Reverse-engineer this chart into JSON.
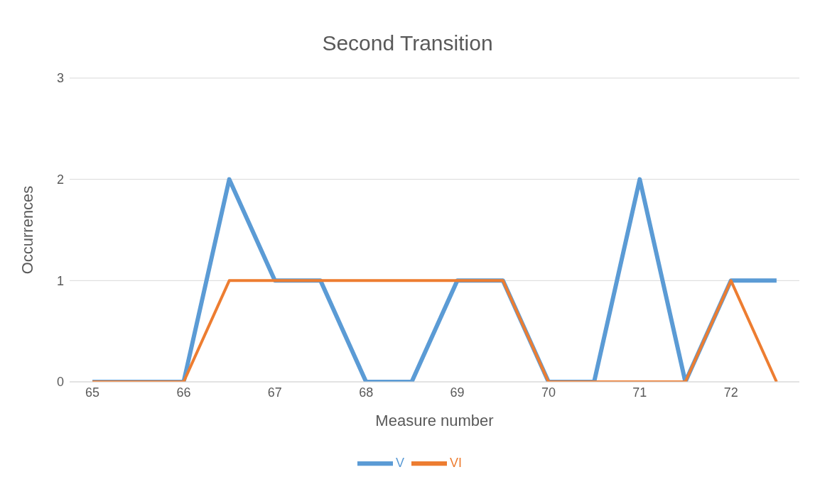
{
  "chart_data": {
    "type": "line",
    "title": "Second Transition",
    "xlabel": "Measure number",
    "ylabel": "Occurrences",
    "categories": [
      "65",
      null,
      "66",
      null,
      "67",
      null,
      "68",
      null,
      "69",
      null,
      "70",
      null,
      "71",
      null,
      "72",
      null
    ],
    "series": [
      {
        "name": "V",
        "color": "#5b9bd5",
        "values": [
          0,
          0,
          0,
          2,
          1,
          1,
          0,
          0,
          1,
          1,
          0,
          0,
          2,
          0,
          1,
          1
        ]
      },
      {
        "name": "VI",
        "color": "#ed7d31",
        "values": [
          0,
          0,
          0,
          1,
          1,
          1,
          1,
          1,
          1,
          1,
          0,
          0,
          0,
          0,
          1,
          0
        ]
      }
    ],
    "ylim": [
      0,
      3
    ],
    "yticks": [
      0,
      1,
      2,
      3
    ],
    "grid": "y",
    "legend": "bottom",
    "marker": "none",
    "line_style": "solid"
  }
}
